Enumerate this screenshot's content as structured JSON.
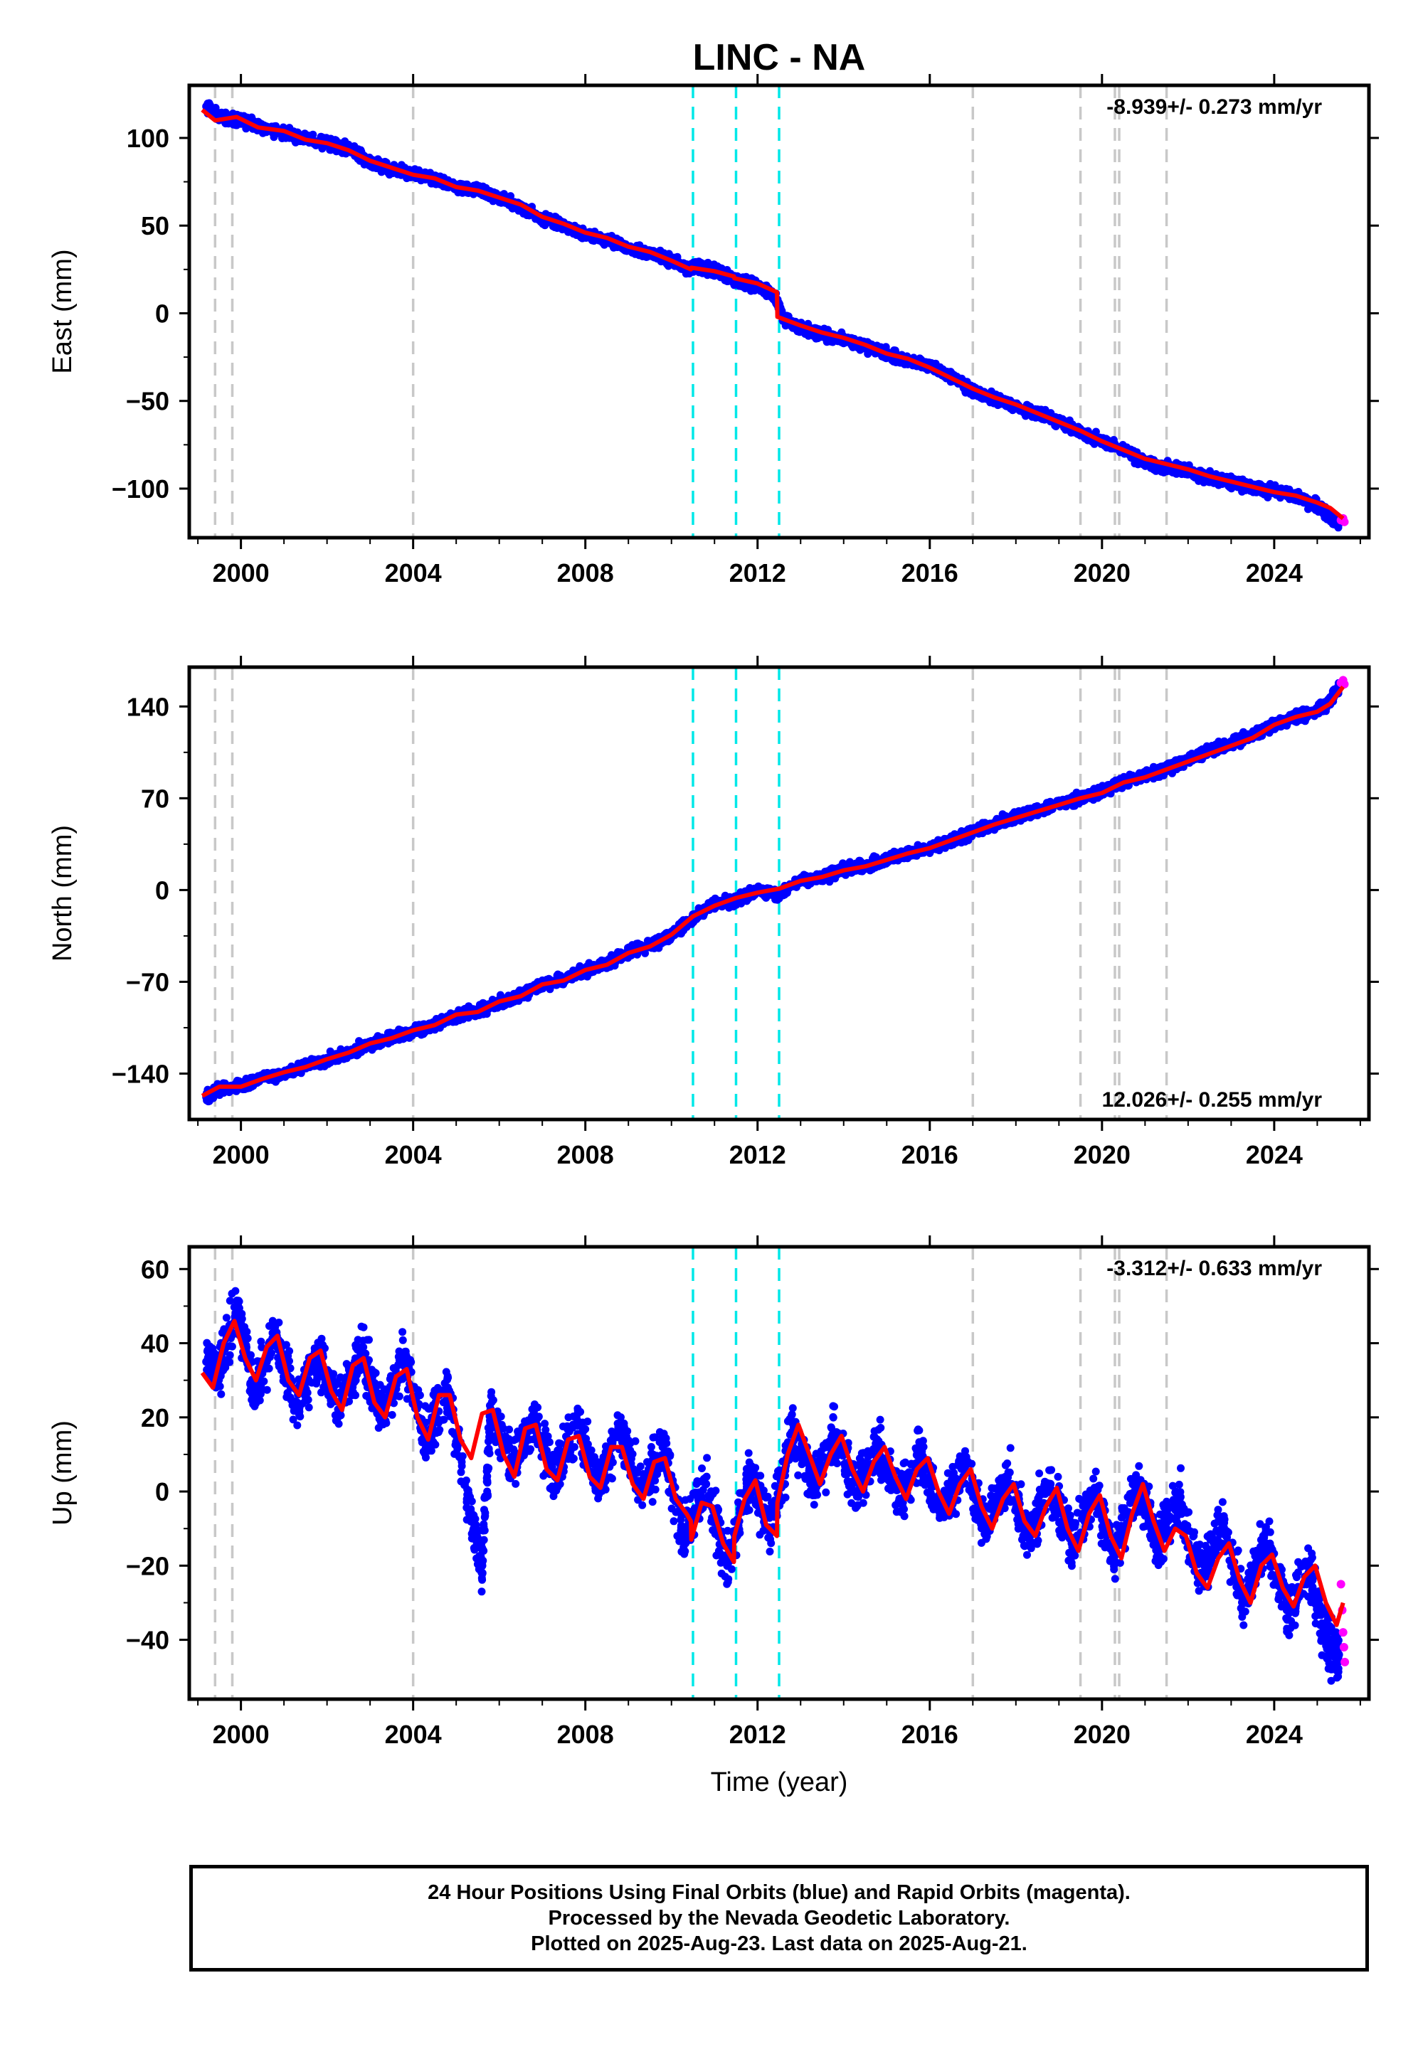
{
  "title": "LINC - NA",
  "x_axis_label": "Time (year)",
  "footer": {
    "line1": "24 Hour Positions Using Final Orbits (blue) and Rapid Orbits (magenta).",
    "line2": "Processed by the Nevada Geodetic Laboratory.",
    "line3": "Plotted on 2025-Aug-23. Last data on 2025-Aug-21."
  },
  "colors": {
    "final_orbits": "#0000ff",
    "rapid_orbits": "#ff00ff",
    "model": "#ff0000",
    "offset_equipment": "#c8c8c8",
    "offset_earthquake": "#00e8e8"
  },
  "chart_data": [
    {
      "type": "scatter",
      "component": "East",
      "ylabel": "East (mm)",
      "xlim": [
        1998.8,
        2026.2
      ],
      "ylim": [
        -128,
        130
      ],
      "yticks": [
        -100,
        -50,
        0,
        50,
        100
      ],
      "xticks": [
        2000,
        2004,
        2008,
        2012,
        2016,
        2020,
        2024
      ],
      "grid": false,
      "rate_label": "-8.939+/- 0.273 mm/yr",
      "rate_position": "top-right",
      "series": [
        {
          "role": "final",
          "x": [
            1999.2,
            1999.5,
            2000.0,
            2000.5,
            2001.0,
            2001.5,
            2002.0,
            2002.5,
            2003.0,
            2003.5,
            2004.0,
            2004.5,
            2005.0,
            2005.5,
            2006.0,
            2006.5,
            2007.0,
            2007.5,
            2008.0,
            2008.5,
            2009.0,
            2009.5,
            2010.0,
            2010.4,
            2010.6,
            2011.0,
            2011.4,
            2011.6,
            2012.0,
            2012.4,
            2012.6,
            2013.0,
            2013.5,
            2014.0,
            2014.5,
            2015.0,
            2015.5,
            2016.0,
            2016.5,
            2017.0,
            2017.5,
            2018.0,
            2018.5,
            2019.0,
            2019.5,
            2020.0,
            2020.5,
            2021.0,
            2021.5,
            2022.0,
            2022.5,
            2023.0,
            2023.5,
            2024.0,
            2024.5,
            2025.0,
            2025.3,
            2025.5
          ],
          "y": [
            118,
            112,
            110,
            106,
            103,
            100,
            97,
            94,
            86,
            82,
            79,
            76,
            72,
            70,
            66,
            60,
            54,
            50,
            45,
            42,
            37,
            34,
            30,
            26,
            27,
            24,
            20,
            18,
            16,
            10,
            -3,
            -9,
            -12,
            -15,
            -19,
            -23,
            -27,
            -30,
            -36,
            -44,
            -49,
            -53,
            -57,
            -62,
            -68,
            -73,
            -78,
            -85,
            -88,
            -90,
            -94,
            -96,
            -100,
            -101,
            -104,
            -110,
            -116,
            -120
          ]
        },
        {
          "role": "rapid",
          "x": [
            2025.55,
            2025.6,
            2025.63
          ],
          "y": [
            -118,
            -117,
            -119
          ]
        },
        {
          "role": "model",
          "x": [
            1999.1,
            1999.4,
            1999.9,
            2000.4,
            2001.0,
            2001.5,
            2002.0,
            2002.5,
            2003.0,
            2003.5,
            2004.0,
            2004.5,
            2005.0,
            2005.5,
            2006.0,
            2006.5,
            2007.0,
            2007.5,
            2008.0,
            2008.5,
            2009.0,
            2009.5,
            2010.0,
            2010.45,
            2010.46,
            2011.0,
            2011.45,
            2011.46,
            2012.0,
            2012.45,
            2012.46,
            2013.0,
            2013.5,
            2014.0,
            2014.5,
            2015.0,
            2015.5,
            2016.0,
            2016.5,
            2017.0,
            2017.5,
            2018.0,
            2018.5,
            2019.0,
            2019.5,
            2020.0,
            2020.5,
            2021.0,
            2021.5,
            2022.0,
            2022.5,
            2023.0,
            2023.5,
            2024.0,
            2024.5,
            2025.0,
            2025.3,
            2025.6
          ],
          "y": [
            116,
            110,
            112,
            106,
            104,
            99,
            97,
            93,
            87,
            83,
            79,
            77,
            72,
            70,
            66,
            62,
            55,
            51,
            46,
            43,
            38,
            35,
            30,
            25,
            26,
            24,
            21,
            20,
            17,
            12,
            -2,
            -7,
            -11,
            -14,
            -18,
            -23,
            -26,
            -31,
            -37,
            -43,
            -48,
            -52,
            -57,
            -62,
            -67,
            -73,
            -78,
            -83,
            -86,
            -89,
            -93,
            -96,
            -99,
            -102,
            -104,
            -108,
            -111,
            -117
          ]
        }
      ],
      "offsets_equipment": [
        1999.4,
        1999.8,
        2004.0,
        2017.0,
        2019.5,
        2020.3,
        2020.4,
        2021.5
      ],
      "offsets_earthquake": [
        2010.5,
        2011.5,
        2012.5
      ]
    },
    {
      "type": "scatter",
      "component": "North",
      "ylabel": "North (mm)",
      "xlim": [
        1998.8,
        2026.2
      ],
      "ylim": [
        -175,
        170
      ],
      "yticks": [
        -140,
        -70,
        0,
        70,
        140
      ],
      "xticks": [
        2000,
        2004,
        2008,
        2012,
        2016,
        2020,
        2024
      ],
      "grid": false,
      "rate_label": "12.026+/- 0.255 mm/yr",
      "rate_position": "bottom-right",
      "series": [
        {
          "role": "final",
          "x": [
            1999.2,
            1999.5,
            2000.0,
            2000.5,
            2001.0,
            2001.5,
            2002.0,
            2002.5,
            2003.0,
            2003.5,
            2004.0,
            2004.5,
            2005.0,
            2005.5,
            2006.0,
            2006.5,
            2007.0,
            2007.5,
            2008.0,
            2008.5,
            2009.0,
            2009.5,
            2010.0,
            2010.5,
            2011.0,
            2011.5,
            2012.0,
            2012.5,
            2013.0,
            2013.5,
            2014.0,
            2014.5,
            2015.0,
            2015.5,
            2016.0,
            2016.5,
            2017.0,
            2017.5,
            2018.0,
            2018.5,
            2019.0,
            2019.5,
            2020.0,
            2020.5,
            2021.0,
            2021.5,
            2022.0,
            2022.5,
            2023.0,
            2023.5,
            2024.0,
            2024.5,
            2025.0,
            2025.3,
            2025.5
          ],
          "y": [
            -158,
            -152,
            -150,
            -143,
            -140,
            -134,
            -130,
            -124,
            -118,
            -112,
            -108,
            -102,
            -96,
            -92,
            -86,
            -80,
            -72,
            -68,
            -62,
            -56,
            -48,
            -42,
            -34,
            -22,
            -10,
            -8,
            0,
            -4,
            8,
            10,
            16,
            18,
            24,
            28,
            32,
            38,
            44,
            50,
            56,
            60,
            66,
            70,
            76,
            82,
            88,
            92,
            100,
            106,
            112,
            118,
            126,
            132,
            136,
            145,
            155
          ]
        },
        {
          "role": "rapid",
          "x": [
            2025.55,
            2025.6,
            2025.63
          ],
          "y": [
            158,
            160,
            157
          ]
        },
        {
          "role": "model",
          "x": [
            1999.1,
            1999.5,
            2000.0,
            2000.5,
            2001.0,
            2001.5,
            2002.0,
            2002.5,
            2003.0,
            2003.5,
            2004.0,
            2004.5,
            2005.0,
            2005.5,
            2006.0,
            2006.5,
            2007.0,
            2007.5,
            2008.0,
            2008.5,
            2009.0,
            2009.5,
            2010.0,
            2010.5,
            2011.0,
            2011.5,
            2012.0,
            2012.5,
            2013.0,
            2013.5,
            2014.0,
            2014.5,
            2015.0,
            2015.5,
            2016.0,
            2016.5,
            2017.0,
            2017.5,
            2018.0,
            2018.5,
            2019.0,
            2019.5,
            2020.0,
            2020.5,
            2021.0,
            2021.5,
            2022.0,
            2022.5,
            2023.0,
            2023.5,
            2024.0,
            2024.5,
            2025.0,
            2025.3,
            2025.6
          ],
          "y": [
            -157,
            -150,
            -150,
            -144,
            -139,
            -135,
            -129,
            -124,
            -117,
            -113,
            -107,
            -103,
            -95,
            -93,
            -85,
            -81,
            -72,
            -69,
            -61,
            -57,
            -48,
            -43,
            -34,
            -20,
            -12,
            -6,
            -2,
            1,
            7,
            10,
            15,
            18,
            23,
            28,
            32,
            38,
            44,
            50,
            55,
            60,
            65,
            70,
            74,
            82,
            86,
            92,
            98,
            104,
            110,
            116,
            126,
            132,
            136,
            142,
            155
          ]
        }
      ],
      "offsets_equipment": [
        1999.4,
        1999.8,
        2004.0,
        2017.0,
        2019.5,
        2020.3,
        2020.4,
        2021.5
      ],
      "offsets_earthquake": [
        2010.5,
        2011.5,
        2012.5
      ]
    },
    {
      "type": "scatter",
      "component": "Up",
      "ylabel": "Up (mm)",
      "xlabel": "Time (year)",
      "xlim": [
        1998.8,
        2026.2
      ],
      "ylim": [
        -56,
        66
      ],
      "yticks": [
        -40,
        -20,
        0,
        20,
        40,
        60
      ],
      "xticks": [
        2000,
        2004,
        2008,
        2012,
        2016,
        2020,
        2024
      ],
      "grid": false,
      "rate_label": "-3.312+/- 0.633 mm/yr",
      "rate_position": "top-right",
      "series": [
        {
          "role": "final",
          "x": [
            1999.2,
            1999.5,
            1999.9,
            2000.3,
            2000.8,
            2001.3,
            2001.8,
            2002.3,
            2002.8,
            2003.3,
            2003.8,
            2004.3,
            2004.8,
            2005.3,
            2005.6,
            2005.8,
            2006.3,
            2006.8,
            2007.3,
            2007.8,
            2008.3,
            2008.8,
            2009.3,
            2009.8,
            2010.3,
            2010.8,
            2011.3,
            2011.8,
            2012.3,
            2012.8,
            2013.3,
            2013.8,
            2014.3,
            2014.8,
            2015.3,
            2015.8,
            2016.3,
            2016.8,
            2017.3,
            2017.8,
            2018.3,
            2018.8,
            2019.3,
            2019.8,
            2020.3,
            2020.8,
            2021.3,
            2021.8,
            2022.3,
            2022.8,
            2023.3,
            2023.8,
            2024.3,
            2024.8,
            2025.2,
            2025.5
          ],
          "y": [
            35,
            32,
            50,
            28,
            42,
            24,
            36,
            22,
            38,
            20,
            36,
            14,
            28,
            -5,
            -20,
            22,
            6,
            20,
            4,
            18,
            2,
            16,
            0,
            12,
            -12,
            2,
            -20,
            4,
            -10,
            16,
            2,
            15,
            0,
            12,
            -2,
            10,
            -6,
            8,
            -10,
            4,
            -12,
            2,
            -14,
            0,
            -16,
            2,
            -14,
            -2,
            -22,
            -8,
            -30,
            -14,
            -32,
            -22,
            -40,
            -44
          ]
        },
        {
          "role": "rapid",
          "x": [
            2025.55,
            2025.58,
            2025.6,
            2025.62,
            2025.64
          ],
          "y": [
            -25,
            -32,
            -38,
            -42,
            -46
          ]
        },
        {
          "role": "model",
          "x": [
            1999.1,
            1999.35,
            1999.6,
            1999.85,
            2000.1,
            2000.35,
            2000.6,
            2000.85,
            2001.1,
            2001.35,
            2001.6,
            2001.85,
            2002.1,
            2002.35,
            2002.6,
            2002.85,
            2003.1,
            2003.35,
            2003.6,
            2003.85,
            2004.1,
            2004.35,
            2004.6,
            2004.85,
            2005.1,
            2005.35,
            2005.6,
            2005.85,
            2006.1,
            2006.35,
            2006.6,
            2006.85,
            2007.1,
            2007.35,
            2007.6,
            2007.85,
            2008.1,
            2008.35,
            2008.6,
            2008.85,
            2009.1,
            2009.35,
            2009.6,
            2009.85,
            2010.1,
            2010.35,
            2010.45,
            2010.46,
            2010.7,
            2010.95,
            2011.2,
            2011.45,
            2011.46,
            2011.7,
            2011.95,
            2012.2,
            2012.45,
            2012.46,
            2012.7,
            2012.95,
            2013.2,
            2013.45,
            2013.7,
            2013.95,
            2014.2,
            2014.45,
            2014.7,
            2014.95,
            2015.2,
            2015.45,
            2015.7,
            2015.95,
            2016.2,
            2016.45,
            2016.7,
            2016.95,
            2017.2,
            2017.45,
            2017.7,
            2017.95,
            2018.2,
            2018.45,
            2018.7,
            2018.95,
            2019.2,
            2019.45,
            2019.7,
            2019.95,
            2020.2,
            2020.45,
            2020.7,
            2020.95,
            2021.2,
            2021.45,
            2021.7,
            2021.95,
            2022.2,
            2022.45,
            2022.7,
            2022.95,
            2023.2,
            2023.45,
            2023.7,
            2023.95,
            2024.2,
            2024.45,
            2024.7,
            2024.95,
            2025.2,
            2025.45,
            2025.6
          ],
          "y": [
            32,
            28,
            40,
            46,
            36,
            30,
            39,
            42,
            30,
            26,
            36,
            38,
            27,
            22,
            34,
            36,
            24,
            20,
            31,
            33,
            20,
            14,
            26,
            26,
            14,
            9,
            21,
            22,
            10,
            4,
            17,
            18,
            6,
            3,
            14,
            15,
            4,
            1,
            12,
            12,
            2,
            -2,
            8,
            9,
            -2,
            -6,
            -8,
            -13,
            -3,
            -4,
            -14,
            -19,
            -12,
            -2,
            3,
            -9,
            -12,
            -3,
            10,
            18,
            10,
            2,
            10,
            15,
            6,
            0,
            8,
            12,
            4,
            -2,
            6,
            9,
            0,
            -6,
            2,
            6,
            -4,
            -10,
            -2,
            2,
            -8,
            -12,
            -4,
            1,
            -10,
            -16,
            -6,
            -1,
            -12,
            -18,
            -6,
            2,
            -8,
            -16,
            -10,
            -12,
            -22,
            -26,
            -18,
            -14,
            -24,
            -30,
            -20,
            -17,
            -26,
            -31,
            -23,
            -20,
            -30,
            -36,
            -30
          ]
        }
      ],
      "offsets_equipment": [
        1999.4,
        1999.8,
        2004.0,
        2017.0,
        2019.5,
        2020.3,
        2020.4,
        2021.5
      ],
      "offsets_earthquake": [
        2010.5,
        2011.5,
        2012.5
      ]
    }
  ]
}
